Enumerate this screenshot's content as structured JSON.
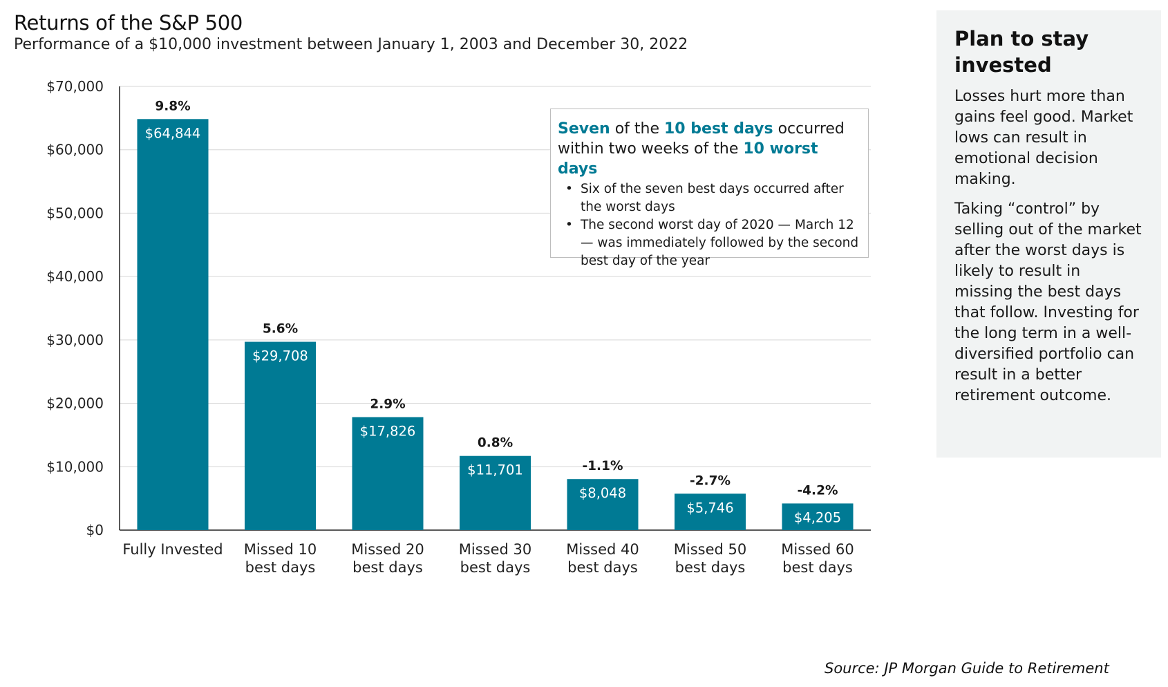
{
  "title": "Returns of the S&P 500",
  "subtitle": "Performance of a $10,000 investment between January 1, 2003 and December 30, 2022",
  "chart_data": {
    "type": "bar",
    "title": "Returns of the S&P 500",
    "subtitle": "Performance of a $10,000 investment between January 1, 2003 and December 30, 2022",
    "categories": [
      [
        "Fully Invested"
      ],
      [
        "Missed 10",
        "best days"
      ],
      [
        "Missed 20",
        "best days"
      ],
      [
        "Missed 30",
        "best days"
      ],
      [
        "Missed 40",
        "best days"
      ],
      [
        "Missed 50",
        "best days"
      ],
      [
        "Missed 60",
        "best days"
      ]
    ],
    "values": [
      64844,
      29708,
      17826,
      11701,
      8048,
      5746,
      4205
    ],
    "value_labels": [
      "$64,844",
      "$29,708",
      "$17,826",
      "$11,701",
      "$8,048",
      "$5,746",
      "$4,205"
    ],
    "returns": [
      "9.8%",
      "5.6%",
      "2.9%",
      "0.8%",
      "-1.1%",
      "-2.7%",
      "-4.2%"
    ],
    "ylim": [
      0,
      70000
    ],
    "yticks": [
      0,
      10000,
      20000,
      30000,
      40000,
      50000,
      60000,
      70000
    ],
    "ytick_labels": [
      "$0",
      "$10,000",
      "$20,000",
      "$30,000",
      "$40,000",
      "$50,000",
      "$60,000",
      "$70,000"
    ],
    "xlabel": "",
    "ylabel": "",
    "grid": true,
    "bar_color": "#007a94"
  },
  "callout": {
    "hl_1": "Seven",
    "hl_2": " of the ",
    "hl_3": "10 best days",
    "hl_4": " occurred",
    "hl_5": "within two weeks of the ",
    "hl_6": "10 worst days",
    "bullets": [
      "Six of the seven best days occurred after the worst days",
      "The second worst day of 2020 — March 12 — was immediately followed by the second best day of the year"
    ]
  },
  "sidebar": {
    "heading": "Plan to stay invested",
    "p1": "Losses hurt more than gains feel good. Market lows can result in emotional decision making.",
    "p2": "Taking “control” by selling out of the market after the worst days is likely to result in missing the best days that follow. Investing for the long term in a well-diversified portfolio can result in a better retirement outcome."
  },
  "source": "Source: JP Morgan Guide to Retirement",
  "colors": {
    "accent": "#007a94",
    "sidebar_bg": "#f1f3f3"
  }
}
